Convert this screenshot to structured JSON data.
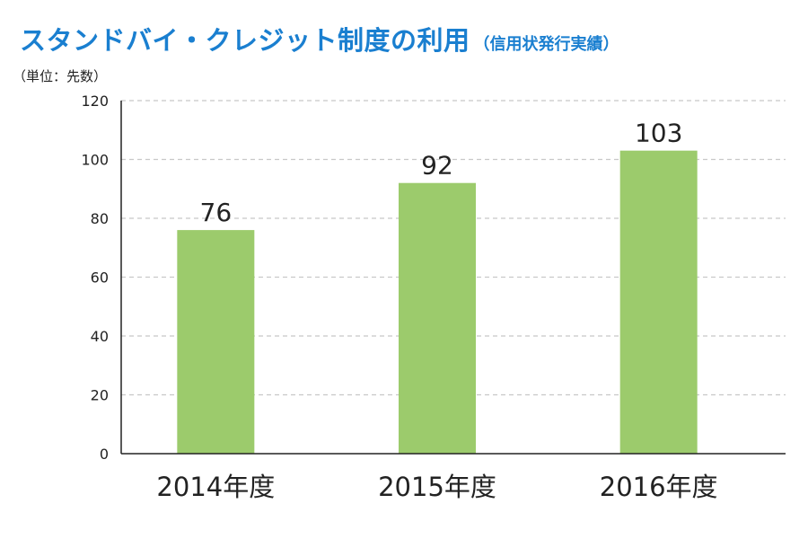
{
  "title": "スタンドバイ・クレジット制度の利用",
  "subtitle": "（信用状発行実績）",
  "unit_label": "（単位：先数）",
  "colors": {
    "bar": "#9ccb6c",
    "title": "#1a7fd0",
    "grid": "#c8c8c8"
  },
  "chart_data": {
    "type": "bar",
    "categories": [
      "2014年度",
      "2015年度",
      "2016年度"
    ],
    "values": [
      76,
      92,
      103
    ],
    "yticks": [
      0,
      20,
      40,
      60,
      80,
      100,
      120
    ],
    "ylim": [
      0,
      120
    ],
    "grid": true,
    "data_labels": [
      "76",
      "92",
      "103"
    ],
    "xlabel": "",
    "ylabel": ""
  }
}
